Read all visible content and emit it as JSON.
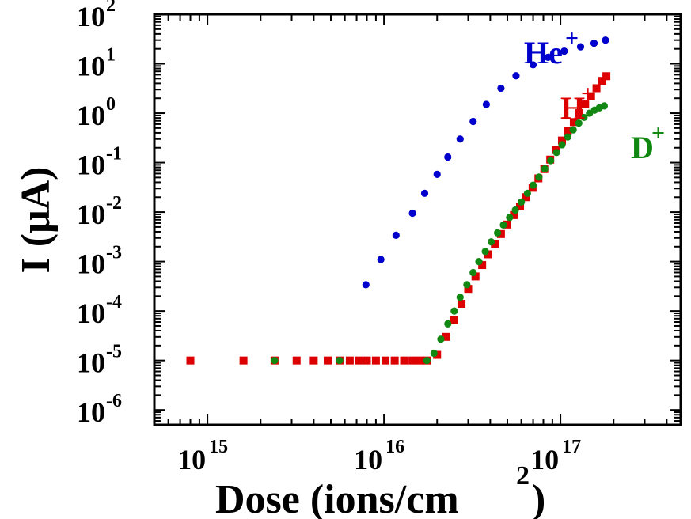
{
  "chart_data": {
    "type": "scatter",
    "xlabel": "Dose (ions/cm",
    "xlabel_sup": "2",
    "xlabel_tail": ")",
    "ylabel": "I (μA)",
    "xscale": "log",
    "yscale": "log",
    "xlim": [
      500000000000000.0,
      4.8e+17
    ],
    "ylim": [
      5e-07,
      100
    ],
    "x_ticks": [
      {
        "value": 1000000000000000.0,
        "base": "10",
        "exp": "15"
      },
      {
        "value": 1e+16,
        "base": "10",
        "exp": "16"
      },
      {
        "value": 1e+17,
        "base": "10",
        "exp": "17"
      }
    ],
    "y_ticks": [
      {
        "value": 100,
        "base": "10",
        "exp": "2"
      },
      {
        "value": 10,
        "base": "10",
        "exp": "1"
      },
      {
        "value": 1,
        "base": "10",
        "exp": "0"
      },
      {
        "value": 0.1,
        "base": "10",
        "exp": "-1"
      },
      {
        "value": 0.01,
        "base": "10",
        "exp": "-2"
      },
      {
        "value": 0.001,
        "base": "10",
        "exp": "-3"
      },
      {
        "value": 0.0001,
        "base": "10",
        "exp": "-4"
      },
      {
        "value": 1e-05,
        "base": "10",
        "exp": "-5"
      },
      {
        "value": 1e-06,
        "base": "10",
        "exp": "-6"
      }
    ],
    "series": [
      {
        "name": "He",
        "name_sup": "+",
        "color": "#0000cc",
        "marker": "circle",
        "x": [
          800000000000000.0,
          2400000000000000.0,
          4000000000000000.0,
          7900000000000000.0,
          9600000000000000.0,
          1.17e+16,
          1.45e+16,
          1.7e+16,
          2e+16,
          2.3e+16,
          2.7e+16,
          3.2e+16,
          3.8e+16,
          4.6e+16,
          5.6e+16,
          7e+16,
          8.5e+16,
          1.05e+17,
          1.3e+17,
          1.55e+17,
          1.8e+17
        ],
        "y": [
          1e-05,
          1e-05,
          1e-05,
          0.00034,
          0.0011,
          0.0034,
          0.0095,
          0.024,
          0.058,
          0.13,
          0.3,
          0.68,
          1.5,
          3.2,
          5.7,
          9.5,
          13.5,
          18,
          22,
          26,
          30
        ]
      },
      {
        "name": "H",
        "name_sup": "+",
        "color": "#dd0000",
        "marker": "square",
        "x": [
          800000000000000.0,
          1600000000000000.0,
          2400000000000000.0,
          3200000000000000.0,
          4000000000000000.0,
          4800000000000000.0,
          5600000000000000.0,
          6400000000000000.0,
          7200000000000000.0,
          8000000000000000.0,
          9000000000000000.0,
          1.02e+16,
          1.15e+16,
          1.3e+16,
          1.45e+16,
          1.6e+16,
          1.75e+16,
          2e+16,
          2.25e+16,
          2.5e+16,
          2.75e+16,
          3e+16,
          3.3e+16,
          3.6e+16,
          3.9e+16,
          4.25e+16,
          4.6e+16,
          5e+16,
          5.45e+16,
          5.9e+16,
          6.4e+16,
          6.95e+16,
          7.5e+16,
          8.1e+16,
          8.75e+16,
          9.45e+16,
          1.02e+17,
          1.1e+17,
          1.19e+17,
          1.28e+17,
          1.38e+17,
          1.49e+17,
          1.6e+17,
          1.72e+17,
          1.82e+17
        ],
        "y": [
          1e-05,
          1e-05,
          1e-05,
          1e-05,
          1e-05,
          1e-05,
          1e-05,
          1e-05,
          1e-05,
          1e-05,
          1e-05,
          1e-05,
          1e-05,
          1e-05,
          1e-05,
          1e-05,
          1e-05,
          1.3e-05,
          3e-05,
          6.5e-05,
          0.00014,
          0.00028,
          0.0005,
          0.00085,
          0.0014,
          0.0023,
          0.0036,
          0.0056,
          0.0087,
          0.013,
          0.02,
          0.031,
          0.048,
          0.074,
          0.115,
          0.18,
          0.28,
          0.43,
          0.66,
          1.0,
          1.5,
          2.2,
          3.2,
          4.5,
          5.6
        ]
      },
      {
        "name": "D",
        "name_sup": "+",
        "color": "#118811",
        "marker": "circle",
        "x": [
          2400000000000000.0,
          5600000000000000.0,
          1.75e+16,
          1.92e+16,
          2.1e+16,
          2.3e+16,
          2.5e+16,
          2.7e+16,
          2.95e+16,
          3.2e+16,
          3.45e+16,
          3.75e+16,
          4.05e+16,
          4.4e+16,
          4.75e+16,
          5.15e+16,
          5.55e+16,
          6e+16,
          6.5e+16,
          7e+16,
          7.55e+16,
          8.15e+16,
          8.8e+16,
          9.5e+16,
          1.02e+17,
          1.1e+17,
          1.18e+17,
          1.27e+17,
          1.36e+17,
          1.46e+17,
          1.56e+17,
          1.66e+17,
          1.77e+17
        ],
        "y": [
          1e-05,
          1e-05,
          1e-05,
          1.4e-05,
          2.7e-05,
          5.5e-05,
          0.0001,
          0.00019,
          0.00034,
          0.0006,
          0.001,
          0.0016,
          0.0025,
          0.0038,
          0.0055,
          0.0078,
          0.011,
          0.016,
          0.024,
          0.035,
          0.051,
          0.075,
          0.11,
          0.16,
          0.23,
          0.33,
          0.46,
          0.63,
          0.82,
          1.0,
          1.15,
          1.28,
          1.4
        ]
      }
    ]
  }
}
